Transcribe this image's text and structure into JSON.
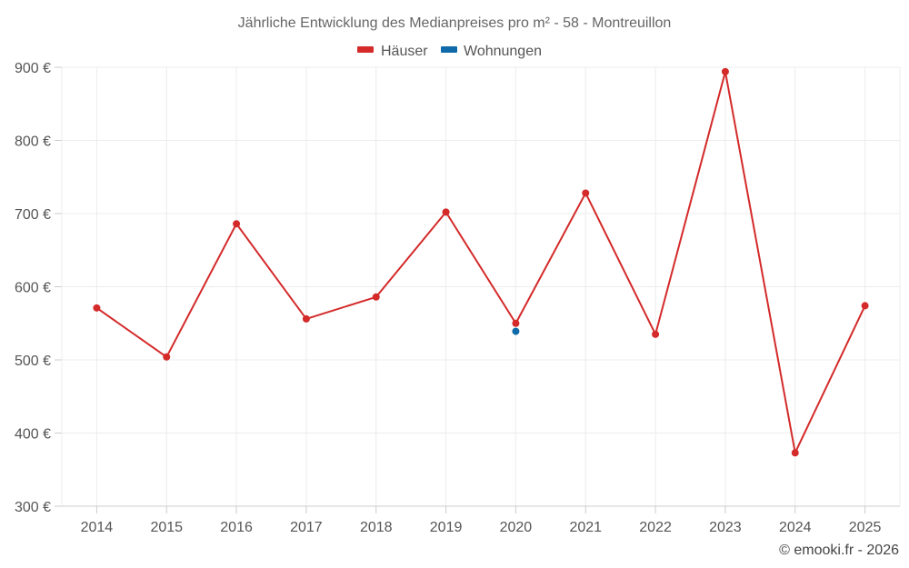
{
  "chart_data": {
    "type": "line",
    "title": "Jährliche Entwicklung des Medianpreises pro m² - 58 - Montreuillon",
    "categories": [
      "2014",
      "2015",
      "2016",
      "2017",
      "2018",
      "2019",
      "2020",
      "2021",
      "2022",
      "2023",
      "2024",
      "2025"
    ],
    "series": [
      {
        "name": "Häuser",
        "color": "#d42a2a",
        "values": [
          571,
          504,
          686,
          556,
          586,
          702,
          550,
          728,
          535,
          894,
          373,
          574
        ]
      },
      {
        "name": "Wohnungen",
        "color": "#0e6aa8",
        "values": [
          null,
          null,
          null,
          null,
          null,
          null,
          539,
          null,
          null,
          null,
          null,
          null
        ]
      }
    ],
    "ylim": [
      300,
      900
    ],
    "yticks": [
      300,
      400,
      500,
      600,
      700,
      800,
      900
    ],
    "ytick_labels": [
      "300 €",
      "400 €",
      "500 €",
      "600 €",
      "700 €",
      "800 €",
      "900 €"
    ],
    "legend_position": "top-center",
    "grid": true
  },
  "credit": "© emooki.fr - 2026"
}
